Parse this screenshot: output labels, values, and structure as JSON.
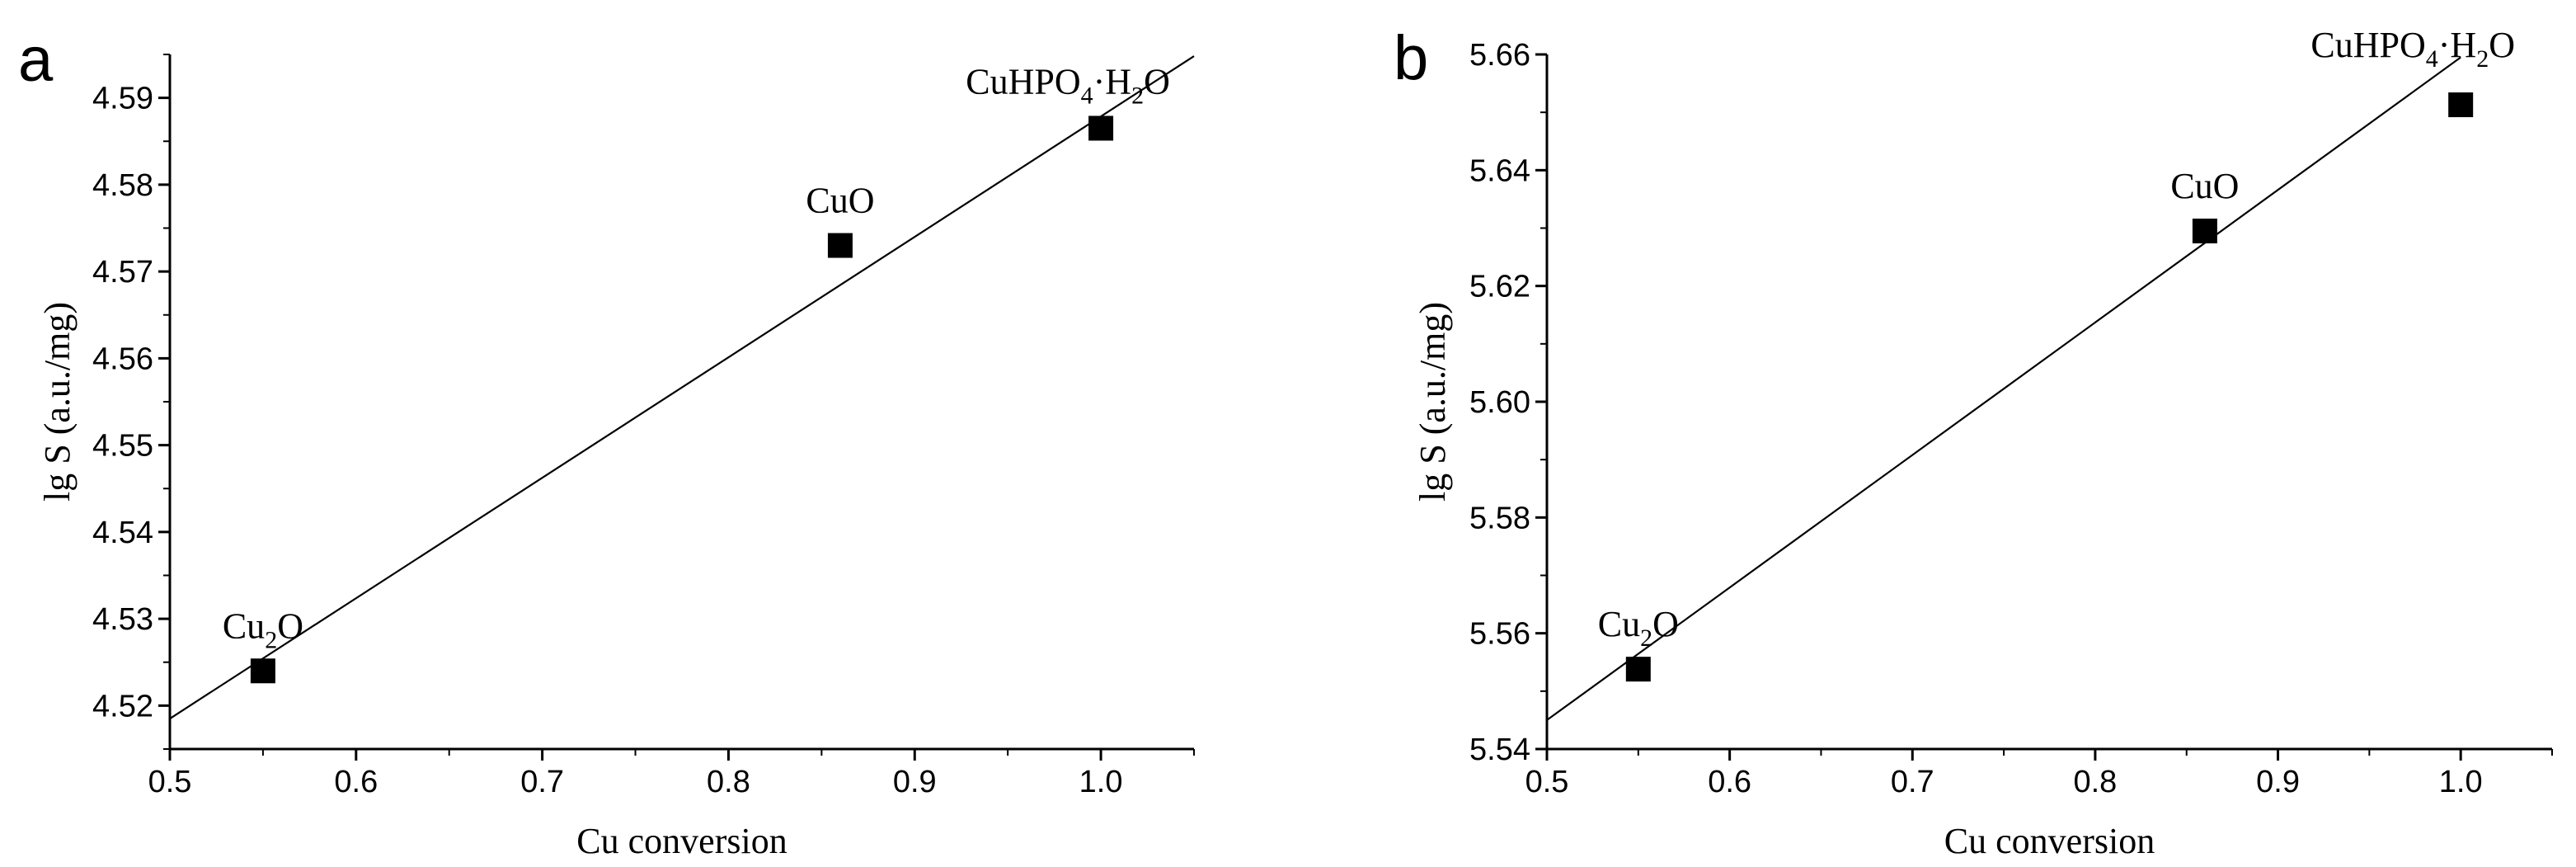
{
  "chart_data": [
    {
      "type": "scatter",
      "panel_label": "a",
      "xlabel": "Cu conversion",
      "ylabel": "lg S (a.u./mg)",
      "xlim": [
        0.5,
        1.05
      ],
      "ylim": [
        4.515,
        4.595
      ],
      "xticks": [
        0.5,
        0.6,
        0.7,
        0.8,
        0.9,
        1.0
      ],
      "xtick_labels": [
        "0.5",
        "0.6",
        "0.7",
        "0.8",
        "0.9",
        "1.0"
      ],
      "yticks": [
        4.52,
        4.53,
        4.54,
        4.55,
        4.56,
        4.57,
        4.58,
        4.59
      ],
      "ytick_labels": [
        "4.52",
        "4.53",
        "4.54",
        "4.55",
        "4.56",
        "4.57",
        "4.58",
        "4.59"
      ],
      "points": [
        {
          "x": 0.55,
          "y": 4.524,
          "label_main": "Cu",
          "label_sub": "2",
          "label_tail": "O",
          "label_full": "Cu2O"
        },
        {
          "x": 0.86,
          "y": 4.573,
          "label_main": "CuO",
          "label_sub": "",
          "label_tail": "",
          "label_full": "CuO"
        },
        {
          "x": 1.0,
          "y": 4.5865,
          "label_main": "CuHPO",
          "label_sub": "4",
          "label_tail": "·H",
          "label_sub2": "2",
          "label_tail2": "O",
          "label_full": "CuHPO4·H2O"
        }
      ],
      "fit_line": {
        "x": [
          0.5,
          1.05
        ],
        "y": [
          4.5185,
          4.5948
        ]
      }
    },
    {
      "type": "scatter",
      "panel_label": "b",
      "xlabel": "Cu conversion",
      "ylabel": "lg S (a.u./mg)",
      "xlim": [
        0.5,
        1.05
      ],
      "ylim": [
        5.54,
        5.66
      ],
      "xticks": [
        0.5,
        0.6,
        0.7,
        0.8,
        0.9,
        1.0
      ],
      "xtick_labels": [
        "0.5",
        "0.6",
        "0.7",
        "0.8",
        "0.9",
        "1.0"
      ],
      "yticks": [
        5.54,
        5.56,
        5.58,
        5.6,
        5.62,
        5.64,
        5.66
      ],
      "ytick_labels": [
        "5.54",
        "5.56",
        "5.58",
        "5.60",
        "5.62",
        "5.64",
        "5.66"
      ],
      "points": [
        {
          "x": 0.55,
          "y": 5.5538,
          "label_main": "Cu",
          "label_sub": "2",
          "label_tail": "O",
          "label_full": "Cu2O"
        },
        {
          "x": 0.86,
          "y": 5.6295,
          "label_main": "CuO",
          "label_sub": "",
          "label_tail": "",
          "label_full": "CuO"
        },
        {
          "x": 1.0,
          "y": 5.6513,
          "label_main": "CuHPO",
          "label_sub": "4",
          "label_tail": "·H",
          "label_sub2": "2",
          "label_tail2": "O",
          "label_full": "CuHPO4·H2O"
        }
      ],
      "fit_line": {
        "x": [
          0.5,
          1.0
        ],
        "y": [
          5.545,
          5.6595
        ]
      }
    }
  ]
}
